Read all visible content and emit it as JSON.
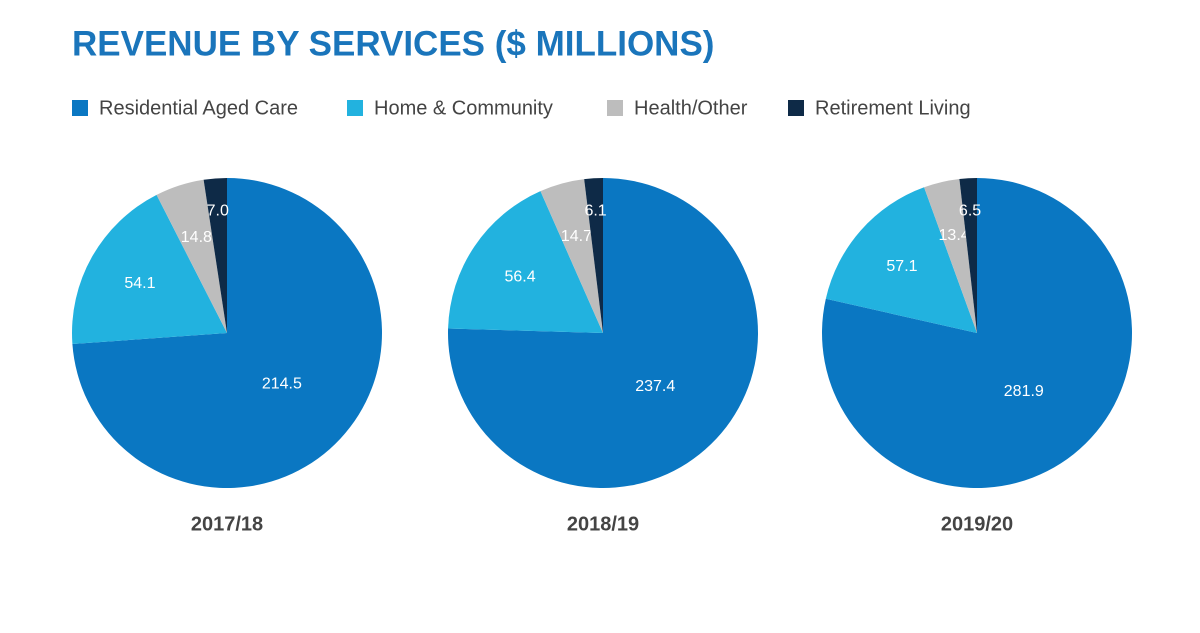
{
  "title": "REVENUE BY SERVICES ($ MILLIONS)",
  "chart_data": [
    {
      "type": "pie",
      "title": "2017/18",
      "categories": [
        "Residential Aged Care",
        "Home & Community",
        "Health/Other",
        "Retirement Living"
      ],
      "colors": [
        "#0a77c2",
        "#22b2df",
        "#bdbdbd",
        "#0e2a47"
      ],
      "values": [
        214.5,
        54.1,
        14.8,
        7.0
      ],
      "value_labels": [
        "214.5",
        "54.1",
        "14.8",
        "7.0"
      ]
    },
    {
      "type": "pie",
      "title": "2018/19",
      "categories": [
        "Residential Aged Care",
        "Home & Community",
        "Health/Other",
        "Retirement Living"
      ],
      "colors": [
        "#0a77c2",
        "#22b2df",
        "#bdbdbd",
        "#0e2a47"
      ],
      "values": [
        237.4,
        56.4,
        14.7,
        6.1
      ],
      "value_labels": [
        "237.4",
        "56.4",
        "14.7",
        "6.1"
      ]
    },
    {
      "type": "pie",
      "title": "2019/20",
      "categories": [
        "Residential Aged Care",
        "Home & Community",
        "Health/Other",
        "Retirement Living"
      ],
      "colors": [
        "#0a77c2",
        "#22b2df",
        "#bdbdbd",
        "#0e2a47"
      ],
      "values": [
        281.9,
        57.1,
        13.4,
        6.5
      ],
      "value_labels": [
        "281.9",
        "57.1",
        "13.4",
        "6.5"
      ]
    }
  ]
}
